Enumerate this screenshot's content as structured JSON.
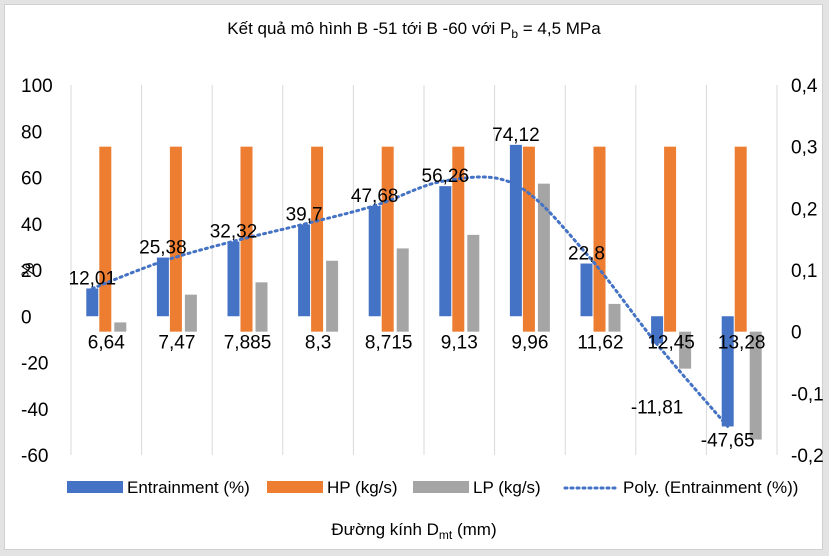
{
  "chart_data": {
    "type": "bar",
    "title": {
      "prefix": "Kết quả mô hình B -51 tới B -60 với P",
      "sub": "b",
      "suffix": " = 4,5 MPa"
    },
    "xlabel": {
      "prefix": "Đường kính D",
      "sub": "mt",
      "suffix": " (mm)"
    },
    "ylabel": "%",
    "categories": [
      "6,64",
      "7,47",
      "7,885",
      "8,3",
      "8,715",
      "9,13",
      "9,96",
      "11,62",
      "12,45",
      "13,28"
    ],
    "ylim": [
      -60,
      100
    ],
    "y_ticks": [
      "100",
      "80",
      "60",
      "40",
      "20",
      "0",
      "-20",
      "-40",
      "-60"
    ],
    "y2lim": [
      -0.2,
      0.4
    ],
    "y2_ticks": [
      "0,4",
      "0,3",
      "0,2",
      "0,1",
      "0",
      "-0,1",
      "-0,2"
    ],
    "grid": "vertical",
    "legend_position": "bottom",
    "series": [
      {
        "name": "Entrainment (%)",
        "color": "#4472c4",
        "axis": "left",
        "values": [
          12.01,
          25.38,
          32.32,
          39.7,
          47.68,
          56.26,
          74.12,
          22.8,
          -11.81,
          -47.65
        ],
        "labels": [
          "12,01",
          "25,38",
          "32,32",
          "39,7",
          "47,68",
          "56,26",
          "74,12",
          "22,8",
          "-11,81",
          "-47,65"
        ]
      },
      {
        "name": "HP (kg/s)",
        "color": "#ed7d31",
        "axis": "right",
        "values": [
          0.3,
          0.3,
          0.3,
          0.3,
          0.3,
          0.3,
          0.3,
          0.3,
          0.3,
          0.3
        ]
      },
      {
        "name": "LP (kg/s)",
        "color": "#a5a5a5",
        "axis": "right",
        "values": [
          0.015,
          0.06,
          0.08,
          0.115,
          0.135,
          0.157,
          0.24,
          0.045,
          -0.06,
          -0.175
        ]
      }
    ],
    "trendline": {
      "name": "Poly. (Entrainment (%))",
      "color": "#4472c4",
      "style": "dotted"
    }
  }
}
